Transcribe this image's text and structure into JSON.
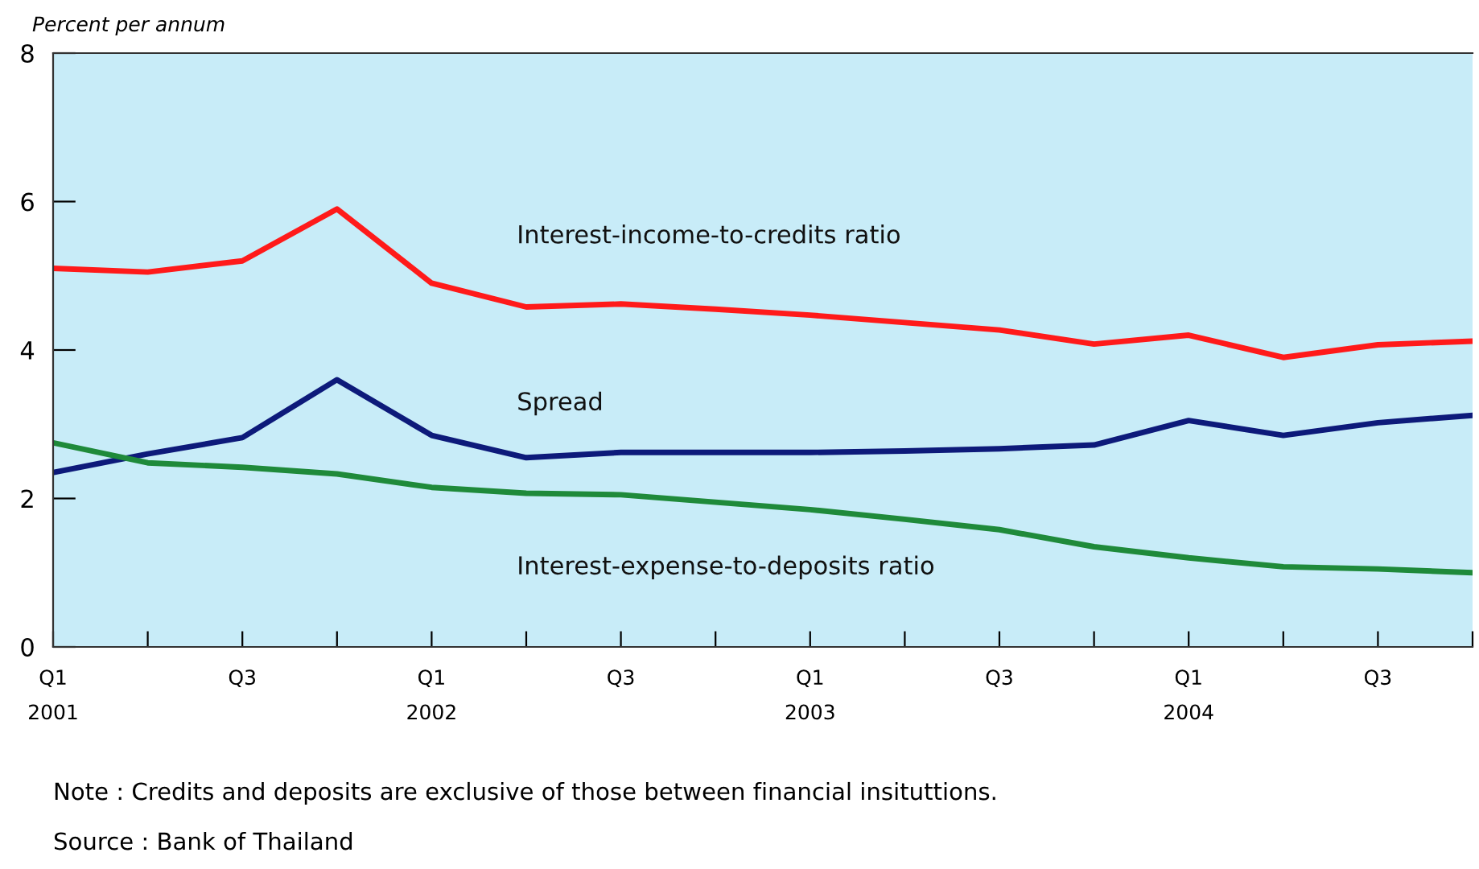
{
  "chart_data": {
    "type": "line",
    "ylabel": "Percent per annum",
    "categories": [
      "Q1\n2001",
      null,
      "Q3",
      null,
      "Q1\n2002",
      null,
      "Q3",
      null,
      "Q1\n2003",
      null,
      "Q3",
      null,
      "Q1\n2004",
      null,
      "Q3",
      null
    ],
    "series": [
      {
        "name": "Interest-income-to-credits ratio",
        "color": "#ff1a1a",
        "values": [
          5.1,
          5.05,
          5.2,
          5.9,
          4.9,
          4.58,
          4.62,
          4.55,
          4.47,
          4.37,
          4.27,
          4.08,
          4.2,
          3.9,
          4.07,
          4.12
        ]
      },
      {
        "name": "Spread",
        "color": "#0d1a7a",
        "values": [
          2.35,
          2.6,
          2.82,
          3.6,
          2.85,
          2.55,
          2.62,
          2.62,
          2.62,
          2.64,
          2.67,
          2.72,
          3.05,
          2.85,
          3.02,
          3.12
        ]
      },
      {
        "name": "Interest-expense-to-deposits ratio",
        "color": "#1f8a3a",
        "values": [
          2.75,
          2.48,
          2.42,
          2.33,
          2.15,
          2.07,
          2.05,
          1.95,
          1.85,
          1.72,
          1.58,
          1.35,
          1.2,
          1.08,
          1.05,
          1.0
        ]
      }
    ],
    "ylim": [
      0,
      8
    ],
    "yticks": [
      0,
      2,
      4,
      6,
      8
    ],
    "grid": false,
    "legend": false,
    "marker": "none",
    "line_style": "solid",
    "annotations": [
      "Note : Credits and deposits are exclusive of those between financial insituttions.",
      "Source : Bank of Thailand"
    ]
  }
}
